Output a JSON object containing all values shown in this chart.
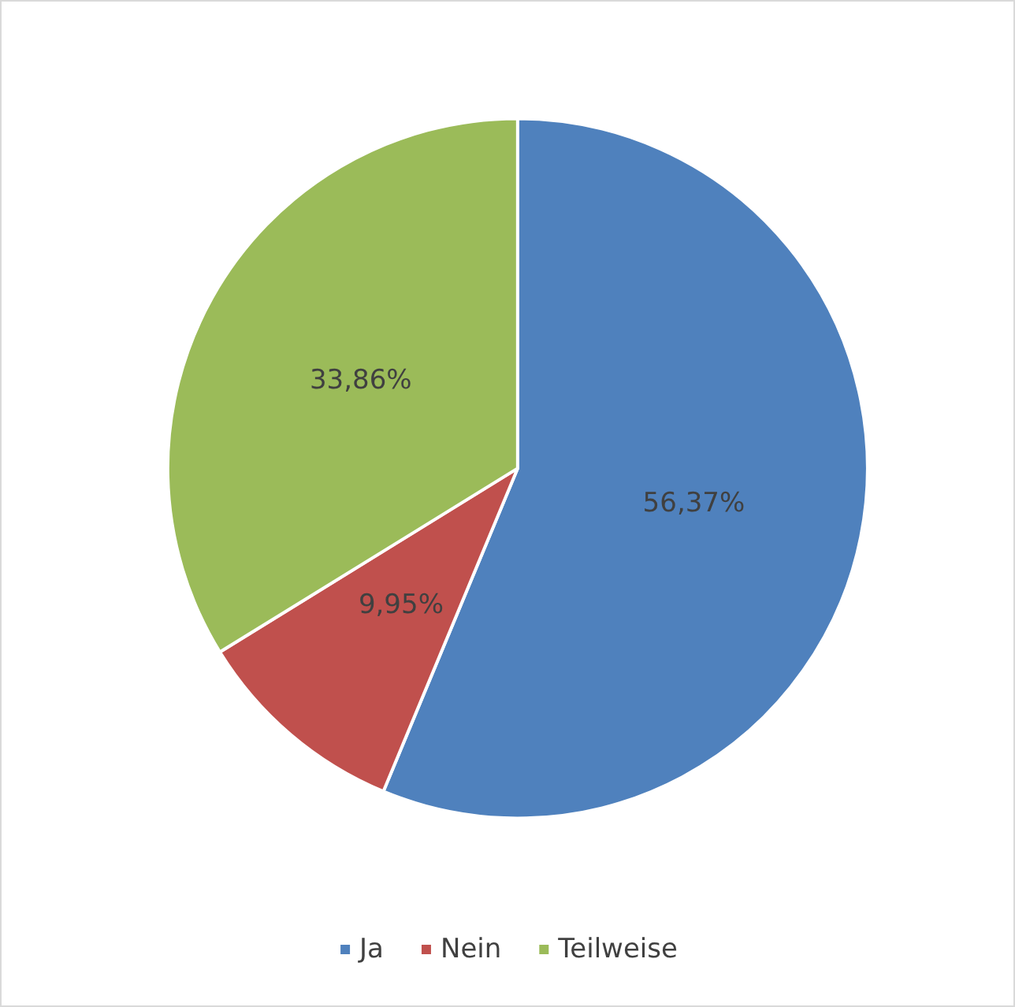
{
  "chart_data": {
    "type": "pie",
    "categories": [
      "Ja",
      "Nein",
      "Teilweise"
    ],
    "values": [
      56.37,
      9.95,
      33.86
    ],
    "colors": [
      "#4f81bd",
      "#c0504d",
      "#9bbb59"
    ],
    "value_labels": [
      "56,37%",
      "9,95%",
      "33,86%"
    ],
    "legend": "bottom"
  }
}
